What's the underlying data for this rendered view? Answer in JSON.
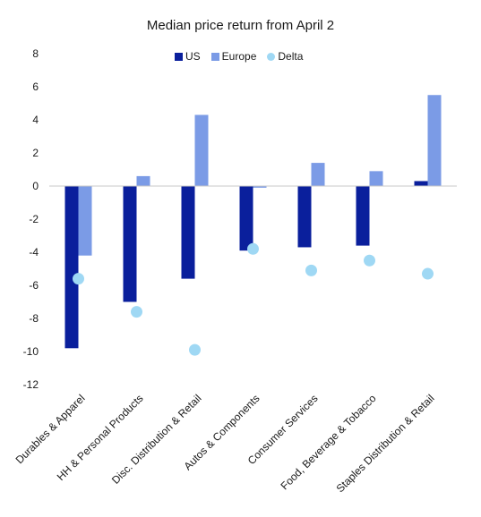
{
  "chart_data": {
    "type": "bar",
    "title": "Median price return from April 2",
    "xlabel": "",
    "ylabel": "",
    "ylim": [
      -12,
      8
    ],
    "yticks": [
      8,
      6,
      4,
      2,
      0,
      -2,
      -4,
      -6,
      -8,
      -10,
      -12
    ],
    "grid": false,
    "legend_position": "top-center",
    "categories": [
      "Durables & Apparel",
      "HH & Personal Products",
      "Disc. Distribution & Retail",
      "Autos & Components",
      "Consumer Services",
      "Food, Beverage & Tobacco",
      "Staples Distribution & Retail"
    ],
    "series": [
      {
        "name": "US",
        "kind": "bar",
        "color": "#0a1f9c",
        "values": [
          -9.8,
          -7.0,
          -5.6,
          -3.9,
          -3.7,
          -3.6,
          0.3
        ]
      },
      {
        "name": "Europe",
        "kind": "bar",
        "color": "#7b9be6",
        "values": [
          -4.2,
          0.6,
          4.3,
          -0.1,
          1.4,
          0.9,
          5.5
        ]
      },
      {
        "name": "Delta",
        "kind": "scatter",
        "color": "#9fd8f4",
        "values": [
          -5.6,
          -7.6,
          -9.9,
          -3.8,
          -5.1,
          -4.5,
          -5.3
        ]
      }
    ]
  }
}
